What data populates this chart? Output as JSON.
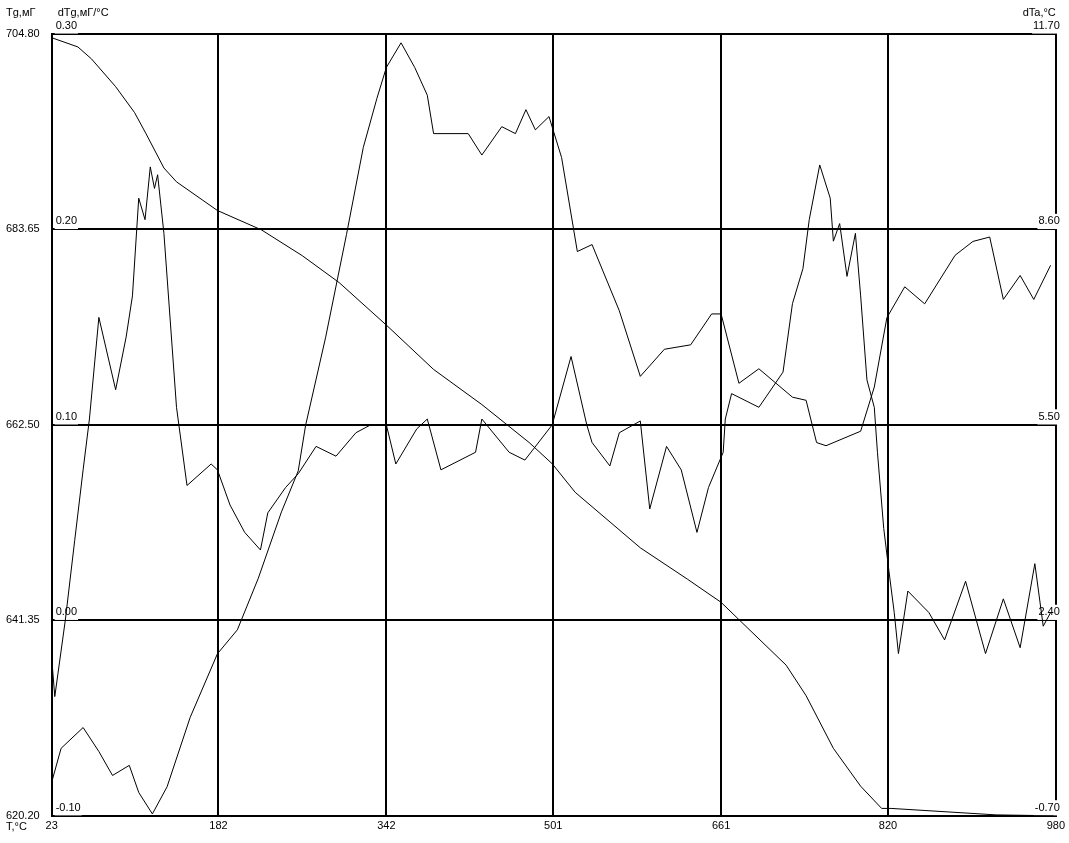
{
  "chart_data": {
    "type": "line",
    "xlabel": "T,°C",
    "ylabel": "Tg,мГ",
    "y2label": "dTg,мГ/°C",
    "y3label": "dTa,°C",
    "xlim": [
      23,
      980
    ],
    "xticks": [
      23,
      182,
      342,
      501,
      661,
      820,
      980
    ],
    "ylim": [
      620.2,
      704.8
    ],
    "yticks": [
      {
        "value": 620.2,
        "label": "620.20"
      },
      {
        "value": 641.35,
        "label": "641.35"
      },
      {
        "value": 662.5,
        "label": "662.50"
      },
      {
        "value": 683.65,
        "label": "683.65"
      },
      {
        "value": 704.8,
        "label": "704.80"
      }
    ],
    "y2lim": [
      -0.1,
      0.3
    ],
    "y2ticks": [
      {
        "value": -0.1,
        "label": "-0.10"
      },
      {
        "value": 0,
        "label": "0.00"
      },
      {
        "value": 0.1,
        "label": "0.10"
      },
      {
        "value": 0.2,
        "label": "0.20"
      },
      {
        "value": 0.3,
        "label": "0.30"
      }
    ],
    "y3lim": [
      -0.7,
      11.7
    ],
    "y3ticks": [
      {
        "value": -0.7,
        "label": "-0.70"
      },
      {
        "value": 2.4,
        "label": "2.40"
      },
      {
        "value": 5.5,
        "label": "5.50"
      },
      {
        "value": 8.6,
        "label": "8.60"
      },
      {
        "value": 11.7,
        "label": "11.70"
      }
    ],
    "grid": true,
    "legend": false,
    "marker": "none",
    "line_style": "solid",
    "series": [
      {
        "color": "#000000",
        "axis": "y",
        "x": [
          23,
          48,
          61,
          84,
          102,
          113,
          130,
          142,
          181,
          223,
          262,
          297,
          342,
          387,
          433,
          478,
          500,
          522,
          584,
          629,
          661,
          681,
          723,
          742,
          768,
          794,
          814,
          823,
          923,
          978
        ],
        "values": [
          704.4,
          703.4,
          702.1,
          699.1,
          696.3,
          694.0,
          690.3,
          688.8,
          685.7,
          683.6,
          680.8,
          677.9,
          673.3,
          668.5,
          664.7,
          660.6,
          658.3,
          655.2,
          649.2,
          645.8,
          643.3,
          641.1,
          636.5,
          633.2,
          627.5,
          623.4,
          621.0,
          621.0,
          620.3,
          620.2
        ]
      },
      {
        "color": "#000000",
        "axis": "y2",
        "x": [
          23,
          26,
          36,
          45,
          53,
          59,
          68,
          84,
          94,
          100,
          106,
          112,
          117,
          121,
          124,
          130,
          142,
          152,
          175,
          181,
          193,
          207,
          222,
          229,
          246,
          258,
          275,
          294,
          313,
          327,
          342,
          351,
          371,
          381,
          394,
          427,
          433,
          459,
          474,
          500,
          518,
          533,
          538,
          555,
          564,
          584,
          593,
          609,
          623,
          638,
          649,
          663,
          665,
          671,
          697,
          720,
          729,
          739,
          745,
          755,
          765,
          768,
          774,
          781,
          789,
          794,
          800,
          807,
          810,
          816,
          821,
          826,
          830,
          839,
          859,
          874,
          894,
          913,
          930,
          946,
          960,
          968,
          975
        ],
        "values": [
          -0.019,
          -0.039,
          0.0,
          0.041,
          0.077,
          0.103,
          0.155,
          0.118,
          0.145,
          0.166,
          0.216,
          0.205,
          0.232,
          0.221,
          0.228,
          0.198,
          0.109,
          0.069,
          0.08,
          0.077,
          0.059,
          0.045,
          0.036,
          0.055,
          0.068,
          0.075,
          0.089,
          0.084,
          0.096,
          0.1,
          0.1,
          0.08,
          0.098,
          0.103,
          0.077,
          0.086,
          0.103,
          0.086,
          0.082,
          0.1,
          0.135,
          0.1,
          0.091,
          0.079,
          0.096,
          0.102,
          0.057,
          0.089,
          0.077,
          0.045,
          0.068,
          0.086,
          0.103,
          0.116,
          0.109,
          0.127,
          0.162,
          0.18,
          0.205,
          0.233,
          0.216,
          0.194,
          0.203,
          0.176,
          0.198,
          0.166,
          0.123,
          0.109,
          0.086,
          0.047,
          0.025,
          0.004,
          -0.017,
          0.015,
          0.004,
          -0.01,
          0.02,
          -0.017,
          0.011,
          -0.014,
          0.029,
          -0.003,
          0.004
        ]
      },
      {
        "color": "#000000",
        "axis": "y3",
        "x": [
          23,
          32,
          53,
          68,
          81,
          97,
          106,
          119,
          133,
          155,
          181,
          200,
          220,
          242,
          258,
          265,
          284,
          304,
          320,
          333,
          342,
          356,
          369,
          381,
          387,
          420,
          433,
          452,
          465,
          475,
          484,
          497,
          509,
          524,
          538,
          564,
          584,
          607,
          632,
          652,
          661,
          678,
          697,
          729,
          742,
          752,
          761,
          794,
          807,
          819,
          836,
          855,
          884,
          901,
          917,
          930,
          946,
          959,
          975
        ],
        "values": [
          -0.17,
          0.37,
          0.7,
          0.32,
          -0.06,
          0.1,
          -0.33,
          -0.67,
          -0.24,
          0.86,
          1.87,
          2.25,
          3.07,
          4.12,
          4.77,
          5.49,
          6.88,
          8.52,
          9.9,
          10.68,
          11.17,
          11.56,
          11.17,
          10.73,
          10.12,
          10.12,
          9.78,
          10.23,
          10.12,
          10.5,
          10.18,
          10.39,
          9.74,
          8.25,
          8.36,
          7.31,
          6.27,
          6.7,
          6.77,
          7.26,
          7.26,
          6.16,
          6.39,
          5.94,
          5.89,
          5.22,
          5.17,
          5.4,
          6.1,
          7.2,
          7.69,
          7.42,
          8.19,
          8.41,
          8.48,
          7.49,
          7.87,
          7.49,
          8.03
        ]
      }
    ]
  }
}
